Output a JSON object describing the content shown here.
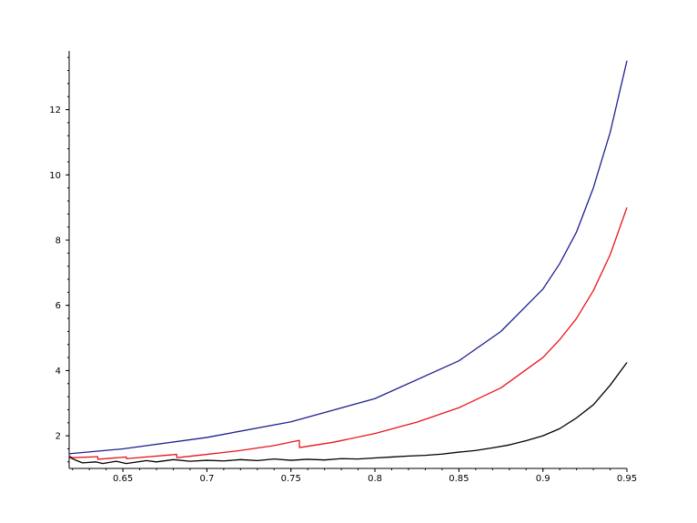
{
  "chart_data": {
    "type": "line",
    "title": "",
    "xlabel": "",
    "ylabel": "",
    "xlim": [
      0.618,
      0.95
    ],
    "ylim": [
      1.0,
      13.8
    ],
    "x_ticks": [
      0.65,
      0.7,
      0.75,
      0.8,
      0.85,
      0.9,
      0.95
    ],
    "x_tick_labels": [
      "0.65",
      "0.7",
      "0.75",
      "0.8",
      "0.85",
      "0.9",
      "0.95"
    ],
    "y_ticks": [
      2,
      4,
      6,
      8,
      10,
      12
    ],
    "y_tick_labels": [
      "2",
      "4",
      "6",
      "8",
      "10",
      "12"
    ],
    "grid": false,
    "legend": "none",
    "series": [
      {
        "color": "#1f1f8f",
        "x": [
          0.618,
          0.65,
          0.7,
          0.75,
          0.8,
          0.85,
          0.875,
          0.9,
          0.91,
          0.92,
          0.93,
          0.94,
          0.95
        ],
        "y": [
          1.45,
          1.6,
          1.95,
          2.43,
          3.14,
          4.3,
          5.2,
          6.5,
          7.28,
          8.25,
          9.6,
          11.3,
          13.5
        ]
      },
      {
        "color": "#e8141b",
        "x": [
          0.618,
          0.62,
          0.635,
          0.6351,
          0.652,
          0.6521,
          0.682,
          0.6821,
          0.7,
          0.72,
          0.74,
          0.755,
          0.7551,
          0.775,
          0.8,
          0.825,
          0.85,
          0.875,
          0.9,
          0.91,
          0.92,
          0.93,
          0.94,
          0.95
        ],
        "y": [
          1.38,
          1.33,
          1.36,
          1.28,
          1.35,
          1.3,
          1.43,
          1.33,
          1.43,
          1.55,
          1.7,
          1.86,
          1.64,
          1.8,
          2.07,
          2.42,
          2.86,
          3.47,
          4.4,
          4.95,
          5.6,
          6.45,
          7.55,
          9.0
        ]
      },
      {
        "color": "#000000",
        "x": [
          0.618,
          0.622,
          0.626,
          0.634,
          0.638,
          0.646,
          0.652,
          0.664,
          0.67,
          0.68,
          0.69,
          0.7,
          0.71,
          0.72,
          0.73,
          0.74,
          0.75,
          0.76,
          0.77,
          0.78,
          0.79,
          0.8,
          0.81,
          0.82,
          0.83,
          0.84,
          0.85,
          0.86,
          0.87,
          0.88,
          0.89,
          0.9,
          0.91,
          0.92,
          0.93,
          0.94,
          0.95
        ],
        "y": [
          1.35,
          1.25,
          1.17,
          1.2,
          1.15,
          1.22,
          1.15,
          1.24,
          1.2,
          1.27,
          1.22,
          1.25,
          1.23,
          1.27,
          1.24,
          1.29,
          1.25,
          1.28,
          1.26,
          1.3,
          1.29,
          1.32,
          1.35,
          1.38,
          1.4,
          1.44,
          1.5,
          1.55,
          1.63,
          1.72,
          1.85,
          2.0,
          2.22,
          2.55,
          2.95,
          3.55,
          4.25
        ]
      }
    ]
  }
}
